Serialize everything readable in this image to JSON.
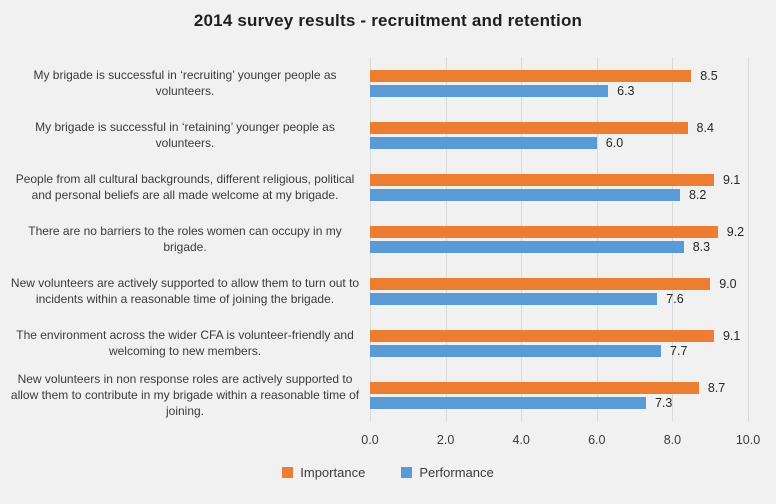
{
  "title": "2014 survey results - recruitment and retention",
  "chart_data": {
    "type": "bar",
    "orientation": "horizontal",
    "title": "2014 survey results - recruitment and retention",
    "categories": [
      "My brigade is successful in ‘recruiting’ younger people as volunteers.",
      "My brigade is successful in ‘retaining’ younger people as volunteers.",
      "People from all cultural backgrounds, different religious, political and personal beliefs are all made welcome at my brigade.",
      "There are no barriers to the roles women can occupy in my brigade.",
      "New volunteers are actively supported to allow them to turn out to incidents within a reasonable time of joining the brigade.",
      "The environment across the wider CFA is volunteer-friendly and welcoming to new members.",
      "New volunteers in non response roles are actively supported to allow them to contribute in my brigade within a reasonable time of joining."
    ],
    "series": [
      {
        "name": "Importance",
        "color": "#ED7D31",
        "values": [
          8.5,
          8.4,
          9.1,
          9.2,
          9.0,
          9.1,
          8.7
        ],
        "labels": [
          "8.5",
          "8.4",
          "9.1",
          "9.2",
          "9.0",
          "9.1",
          "8.7"
        ]
      },
      {
        "name": "Performance",
        "color": "#5B9BD5",
        "values": [
          6.3,
          6.0,
          8.2,
          8.3,
          7.6,
          7.7,
          7.3
        ],
        "labels": [
          "6.3",
          "6.0",
          "8.2",
          "8.3",
          "7.6",
          "7.7",
          "7.3"
        ]
      }
    ],
    "xlim": [
      0,
      10
    ],
    "x_ticks": [
      "0.0",
      "2.0",
      "4.0",
      "6.0",
      "8.0",
      "10.0"
    ],
    "grid": "vertical",
    "legend_position": "bottom"
  },
  "colors": {
    "background": "#F1F1F1",
    "gridline": "#D9D9D9",
    "axis_text": "#3A3A3A",
    "title_text": "#1F1F1F"
  }
}
